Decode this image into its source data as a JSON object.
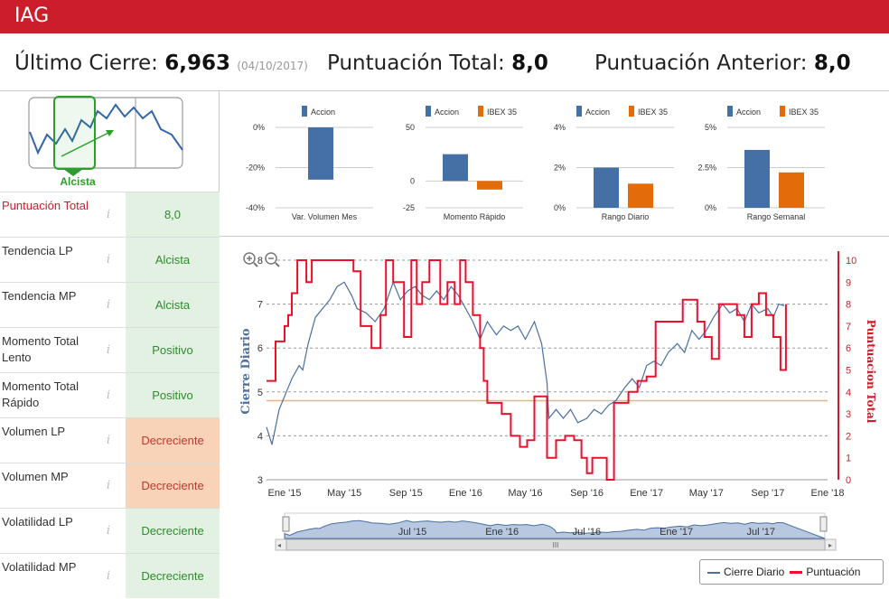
{
  "header": {
    "ticker": "IAG"
  },
  "summary": {
    "last_close_label": "Último Cierre:",
    "last_close_value": "6,963",
    "last_close_date": "(04/10/2017)",
    "total_score_label": "Puntuación Total:",
    "total_score_value": "8,0",
    "prev_score_label": "Puntuación Anterior:",
    "prev_score_value": "8,0"
  },
  "trend": {
    "label": "Alcista"
  },
  "metrics": [
    {
      "label": "Puntuación Total",
      "value": "8,0",
      "status": "positive"
    },
    {
      "label": "Tendencia LP",
      "value": "Alcista",
      "status": "positive"
    },
    {
      "label": "Tendencia MP",
      "value": "Alcista",
      "status": "positive"
    },
    {
      "label": "Momento Total Lento",
      "value": "Positivo",
      "status": "positive"
    },
    {
      "label": "Momento Total Rápido",
      "value": "Positivo",
      "status": "positive"
    },
    {
      "label": "Volumen LP",
      "value": "Decreciente",
      "status": "negative"
    },
    {
      "label": "Volumen MP",
      "value": "Decreciente",
      "status": "negative"
    },
    {
      "label": "Volatilidad LP",
      "value": "Decreciente",
      "status": "positive"
    },
    {
      "label": "Volatilidad MP",
      "value": "Decreciente",
      "status": "positive"
    }
  ],
  "colors": {
    "brand": "#cc1e2a",
    "accion": "#4570a6",
    "ibex": "#e36c0a",
    "positive_bg": "#e3f1e2",
    "positive_text": "#2e8b2e",
    "negative_bg": "#f8d3b8",
    "negative_text": "#c0392b",
    "close_line": "#4a6fa0",
    "score_line": "#e8102a",
    "ref_line": "#f0b080"
  },
  "chart_data": [
    {
      "type": "bar",
      "title": "Var. Volumen Mes",
      "legend": [
        "Accion"
      ],
      "categories": [
        "Var. Volumen Mes"
      ],
      "series": [
        {
          "name": "Accion",
          "values": [
            -26
          ]
        }
      ],
      "ylim": [
        -40,
        0
      ],
      "yticks": [
        "0%",
        "-20%",
        "-40%"
      ],
      "ytick_values": [
        0,
        -20,
        -40
      ]
    },
    {
      "type": "bar",
      "title": "Momento Rápido",
      "legend": [
        "Accion",
        "IBEX 35"
      ],
      "categories": [
        "Momento Rápido"
      ],
      "series": [
        {
          "name": "Accion",
          "values": [
            25
          ]
        },
        {
          "name": "IBEX 35",
          "values": [
            -8
          ]
        }
      ],
      "ylim": [
        -25,
        50
      ],
      "yticks": [
        "50",
        "0",
        "-25"
      ],
      "ytick_values": [
        50,
        0,
        -25
      ]
    },
    {
      "type": "bar",
      "title": "Rango Diario",
      "legend": [
        "Accion",
        "IBEX 35"
      ],
      "categories": [
        "Rango Diario"
      ],
      "series": [
        {
          "name": "Accion",
          "values": [
            2.0
          ]
        },
        {
          "name": "IBEX 35",
          "values": [
            1.2
          ]
        }
      ],
      "ylim": [
        0,
        4
      ],
      "yticks": [
        "4%",
        "2%",
        "0%"
      ],
      "ytick_values": [
        4,
        2,
        0
      ]
    },
    {
      "type": "bar",
      "title": "Rango Semanal",
      "legend": [
        "Accion",
        "IBEX 35"
      ],
      "categories": [
        "Rango Semanal"
      ],
      "series": [
        {
          "name": "Accion",
          "values": [
            3.6
          ]
        },
        {
          "name": "IBEX 35",
          "values": [
            2.2
          ]
        }
      ],
      "ylim": [
        0,
        5
      ],
      "yticks": [
        "5%",
        "2.5%",
        "0%"
      ],
      "ytick_values": [
        5,
        2.5,
        0
      ]
    },
    {
      "type": "line",
      "title": "",
      "ylabel": "Cierre Diario",
      "y2label": "Puntuacion Total",
      "ylim": [
        3,
        8
      ],
      "y2lim": [
        0,
        10
      ],
      "yticks": [
        3,
        4,
        5,
        6,
        7,
        8
      ],
      "y2ticks": [
        0,
        1,
        2,
        3,
        4,
        5,
        6,
        7,
        8,
        9,
        10
      ],
      "x_range": [
        2014.9,
        2018.0
      ],
      "xticks": [
        {
          "label": "Ene '15",
          "x": 2015.0
        },
        {
          "label": "May '15",
          "x": 2015.33
        },
        {
          "label": "Sep '15",
          "x": 2015.67
        },
        {
          "label": "Ene '16",
          "x": 2016.0
        },
        {
          "label": "May '16",
          "x": 2016.33
        },
        {
          "label": "Sep '16",
          "x": 2016.67
        },
        {
          "label": "Ene '17",
          "x": 2017.0
        },
        {
          "label": "May '17",
          "x": 2017.33
        },
        {
          "label": "Sep '17",
          "x": 2017.67
        },
        {
          "label": "Ene '18",
          "x": 2018.0
        }
      ],
      "reference_line": 4.8,
      "series": [
        {
          "name": "Cierre Diario",
          "axis": "left",
          "points": [
            [
              2014.9,
              4.2
            ],
            [
              2014.93,
              3.8
            ],
            [
              2014.97,
              4.6
            ],
            [
              2015.0,
              4.9
            ],
            [
              2015.04,
              5.3
            ],
            [
              2015.08,
              5.6
            ],
            [
              2015.1,
              5.5
            ],
            [
              2015.13,
              6.1
            ],
            [
              2015.17,
              6.7
            ],
            [
              2015.21,
              6.9
            ],
            [
              2015.25,
              7.1
            ],
            [
              2015.29,
              7.4
            ],
            [
              2015.33,
              7.5
            ],
            [
              2015.37,
              7.2
            ],
            [
              2015.4,
              6.9
            ],
            [
              2015.45,
              6.8
            ],
            [
              2015.5,
              6.6
            ],
            [
              2015.55,
              6.9
            ],
            [
              2015.6,
              7.5
            ],
            [
              2015.64,
              7.1
            ],
            [
              2015.68,
              7.3
            ],
            [
              2015.72,
              7.4
            ],
            [
              2015.76,
              7.2
            ],
            [
              2015.8,
              7.1
            ],
            [
              2015.84,
              7.3
            ],
            [
              2015.88,
              7.1
            ],
            [
              2015.92,
              7.4
            ],
            [
              2015.96,
              7.2
            ],
            [
              2016.0,
              6.9
            ],
            [
              2016.04,
              6.6
            ],
            [
              2016.08,
              6.2
            ],
            [
              2016.12,
              6.6
            ],
            [
              2016.17,
              6.3
            ],
            [
              2016.21,
              6.5
            ],
            [
              2016.25,
              6.4
            ],
            [
              2016.29,
              6.5
            ],
            [
              2016.33,
              6.2
            ],
            [
              2016.38,
              6.6
            ],
            [
              2016.42,
              6.1
            ],
            [
              2016.45,
              5.2
            ],
            [
              2016.46,
              4.4
            ],
            [
              2016.5,
              4.6
            ],
            [
              2016.54,
              4.4
            ],
            [
              2016.58,
              4.6
            ],
            [
              2016.62,
              4.3
            ],
            [
              2016.67,
              4.4
            ],
            [
              2016.71,
              4.6
            ],
            [
              2016.75,
              4.5
            ],
            [
              2016.79,
              4.7
            ],
            [
              2016.83,
              4.8
            ],
            [
              2016.88,
              5.1
            ],
            [
              2016.92,
              5.3
            ],
            [
              2016.96,
              5.1
            ],
            [
              2017.0,
              5.6
            ],
            [
              2017.04,
              5.7
            ],
            [
              2017.08,
              5.6
            ],
            [
              2017.12,
              5.9
            ],
            [
              2017.17,
              6.1
            ],
            [
              2017.21,
              5.9
            ],
            [
              2017.25,
              6.4
            ],
            [
              2017.29,
              6.2
            ],
            [
              2017.33,
              6.4
            ],
            [
              2017.37,
              6.7
            ],
            [
              2017.42,
              7.0
            ],
            [
              2017.46,
              6.8
            ],
            [
              2017.5,
              6.9
            ],
            [
              2017.54,
              6.6
            ],
            [
              2017.58,
              7.0
            ],
            [
              2017.62,
              6.8
            ],
            [
              2017.67,
              6.9
            ],
            [
              2017.7,
              6.7
            ],
            [
              2017.73,
              7.0
            ],
            [
              2017.76,
              6.96
            ]
          ]
        },
        {
          "name": "Puntuación",
          "axis": "right",
          "points": [
            [
              2014.9,
              4.5
            ],
            [
              2014.95,
              6.3
            ],
            [
              2015.0,
              7.0
            ],
            [
              2015.02,
              7.5
            ],
            [
              2015.04,
              8.5
            ],
            [
              2015.07,
              10.0
            ],
            [
              2015.12,
              9.0
            ],
            [
              2015.15,
              10.0
            ],
            [
              2015.3,
              10.0
            ],
            [
              2015.38,
              9.5
            ],
            [
              2015.42,
              7.0
            ],
            [
              2015.48,
              6.0
            ],
            [
              2015.53,
              7.5
            ],
            [
              2015.56,
              10.0
            ],
            [
              2015.6,
              9.0
            ],
            [
              2015.66,
              6.5
            ],
            [
              2015.7,
              10.0
            ],
            [
              2015.73,
              8.0
            ],
            [
              2015.76,
              9.0
            ],
            [
              2015.8,
              10.0
            ],
            [
              2015.86,
              8.0
            ],
            [
              2015.9,
              9.0
            ],
            [
              2015.94,
              8.0
            ],
            [
              2015.97,
              10.0
            ],
            [
              2016.0,
              9.0
            ],
            [
              2016.04,
              7.5
            ],
            [
              2016.08,
              6.0
            ],
            [
              2016.1,
              4.5
            ],
            [
              2016.12,
              3.5
            ],
            [
              2016.15,
              3.5
            ],
            [
              2016.2,
              3.0
            ],
            [
              2016.25,
              2.0
            ],
            [
              2016.3,
              1.5
            ],
            [
              2016.34,
              1.8
            ],
            [
              2016.38,
              3.8
            ],
            [
              2016.42,
              3.8
            ],
            [
              2016.45,
              1.0
            ],
            [
              2016.5,
              1.8
            ],
            [
              2016.55,
              2.0
            ],
            [
              2016.6,
              1.8
            ],
            [
              2016.64,
              1.0
            ],
            [
              2016.67,
              0.3
            ],
            [
              2016.7,
              1.0
            ],
            [
              2016.74,
              1.0
            ],
            [
              2016.78,
              0.0
            ],
            [
              2016.82,
              3.5
            ],
            [
              2016.86,
              3.5
            ],
            [
              2016.9,
              4.0
            ],
            [
              2016.95,
              4.5
            ],
            [
              2017.0,
              4.7
            ],
            [
              2017.05,
              7.2
            ],
            [
              2017.15,
              7.2
            ],
            [
              2017.2,
              8.2
            ],
            [
              2017.28,
              7.2
            ],
            [
              2017.32,
              6.5
            ],
            [
              2017.36,
              5.5
            ],
            [
              2017.4,
              8.0
            ],
            [
              2017.46,
              8.0
            ],
            [
              2017.5,
              7.5
            ],
            [
              2017.54,
              6.5
            ],
            [
              2017.58,
              8.0
            ],
            [
              2017.62,
              8.5
            ],
            [
              2017.66,
              7.5
            ],
            [
              2017.7,
              6.5
            ],
            [
              2017.74,
              5.0
            ],
            [
              2017.77,
              8.0
            ]
          ]
        }
      ]
    }
  ],
  "navigator": {
    "labels": [
      "Jul '15",
      "Ene '16",
      "Jul '16",
      "Ene '17",
      "Jul '17"
    ],
    "scroll_handle": "III"
  },
  "legend": {
    "items": [
      {
        "name": "Cierre Diario",
        "color": "#4a6fa0"
      },
      {
        "name": "Puntuación",
        "color": "#e8102a"
      }
    ]
  },
  "zoom": {
    "in_icon": "zoom-in-icon",
    "out_icon": "zoom-out-icon"
  }
}
